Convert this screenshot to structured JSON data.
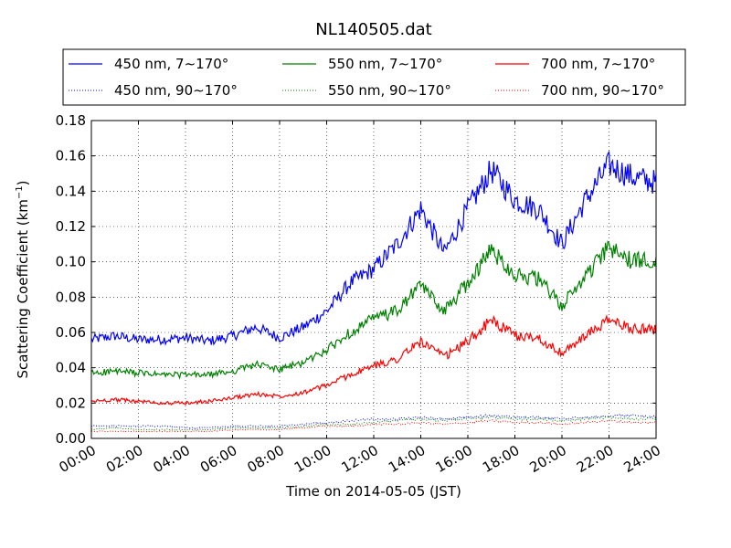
{
  "chart_data": {
    "type": "line",
    "title": "NL140505.dat",
    "xlabel": "Time on 2014-05-05 (JST)",
    "ylabel": "Scattering Coefficient (km",
    "ylabel_sup": "−1",
    "ylabel_end": ")",
    "xlim": [
      "00:00",
      "24:00"
    ],
    "ylim": [
      0,
      0.18
    ],
    "grid": true,
    "legend_position": "top",
    "x_ticks": [
      "00:00",
      "02:00",
      "04:00",
      "06:00",
      "08:00",
      "10:00",
      "12:00",
      "14:00",
      "16:00",
      "18:00",
      "20:00",
      "22:00",
      "24:00"
    ],
    "y_ticks": [
      "0.00",
      "0.02",
      "0.04",
      "0.06",
      "0.08",
      "0.10",
      "0.12",
      "0.14",
      "0.16",
      "0.18"
    ],
    "x_hours": [
      "00:00",
      "01:00",
      "02:00",
      "03:00",
      "04:00",
      "05:00",
      "06:00",
      "07:00",
      "08:00",
      "09:00",
      "10:00",
      "11:00",
      "12:00",
      "13:00",
      "14:00",
      "15:00",
      "16:00",
      "17:00",
      "18:00",
      "19:00",
      "20:00",
      "21:00",
      "22:00",
      "23:00",
      "24:00"
    ],
    "series": [
      {
        "name": "450 nm, 7∼170°",
        "color": "#0000ff",
        "style": "solid",
        "values": [
          0.056,
          0.058,
          0.056,
          0.056,
          0.057,
          0.055,
          0.058,
          0.063,
          0.057,
          0.063,
          0.072,
          0.088,
          0.096,
          0.11,
          0.13,
          0.105,
          0.13,
          0.152,
          0.135,
          0.13,
          0.11,
          0.135,
          0.155,
          0.148,
          0.145
        ]
      },
      {
        "name": "550 nm, 7∼170°",
        "color": "#008000",
        "style": "solid",
        "values": [
          0.037,
          0.038,
          0.037,
          0.036,
          0.036,
          0.036,
          0.038,
          0.042,
          0.039,
          0.043,
          0.05,
          0.06,
          0.068,
          0.072,
          0.087,
          0.072,
          0.088,
          0.107,
          0.093,
          0.09,
          0.075,
          0.092,
          0.108,
          0.1,
          0.102
        ]
      },
      {
        "name": "700 nm, 7∼170°",
        "color": "#ff0000",
        "style": "solid",
        "values": [
          0.021,
          0.022,
          0.021,
          0.02,
          0.02,
          0.021,
          0.023,
          0.025,
          0.024,
          0.026,
          0.03,
          0.036,
          0.041,
          0.045,
          0.055,
          0.046,
          0.055,
          0.067,
          0.058,
          0.057,
          0.048,
          0.058,
          0.067,
          0.062,
          0.062
        ]
      },
      {
        "name": "450 nm, 90∼170°",
        "color": "#0000ff",
        "style": "dotted",
        "values": [
          0.007,
          0.007,
          0.007,
          0.007,
          0.006,
          0.006,
          0.007,
          0.007,
          0.007,
          0.008,
          0.009,
          0.01,
          0.011,
          0.011,
          0.012,
          0.011,
          0.012,
          0.013,
          0.012,
          0.012,
          0.011,
          0.012,
          0.013,
          0.013,
          0.012
        ]
      },
      {
        "name": "550 nm, 90∼170°",
        "color": "#008000",
        "style": "dotted",
        "values": [
          0.005,
          0.006,
          0.005,
          0.005,
          0.005,
          0.005,
          0.006,
          0.006,
          0.006,
          0.007,
          0.008,
          0.008,
          0.009,
          0.01,
          0.011,
          0.01,
          0.011,
          0.012,
          0.011,
          0.011,
          0.01,
          0.011,
          0.012,
          0.011,
          0.011
        ]
      },
      {
        "name": "700 nm, 90∼170°",
        "color": "#ff0000",
        "style": "dotted",
        "values": [
          0.004,
          0.004,
          0.004,
          0.004,
          0.004,
          0.004,
          0.005,
          0.005,
          0.005,
          0.006,
          0.007,
          0.007,
          0.008,
          0.008,
          0.009,
          0.008,
          0.009,
          0.01,
          0.009,
          0.009,
          0.008,
          0.009,
          0.01,
          0.009,
          0.009
        ]
      }
    ]
  }
}
